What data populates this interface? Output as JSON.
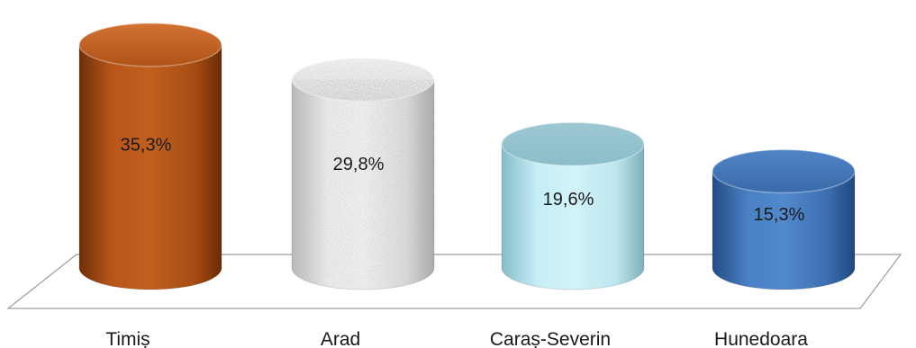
{
  "chart_data": {
    "type": "bar",
    "style": "3d-cylinder",
    "categories": [
      "Timiș",
      "Arad",
      "Caraș-Severin",
      "Hunedoara"
    ],
    "values": [
      35.3,
      29.8,
      19.6,
      15.3
    ],
    "data_labels": [
      "35,3%",
      "29,8%",
      "19,6%",
      "15,3%"
    ],
    "unit": "%",
    "title": "",
    "xlabel": "",
    "ylabel": "",
    "ylim": [
      0,
      40
    ],
    "grid": false,
    "legend": "none",
    "colors": [
      "#A84D12",
      "#E4E4E4",
      "#B7E4EE",
      "#3F72B4"
    ]
  }
}
